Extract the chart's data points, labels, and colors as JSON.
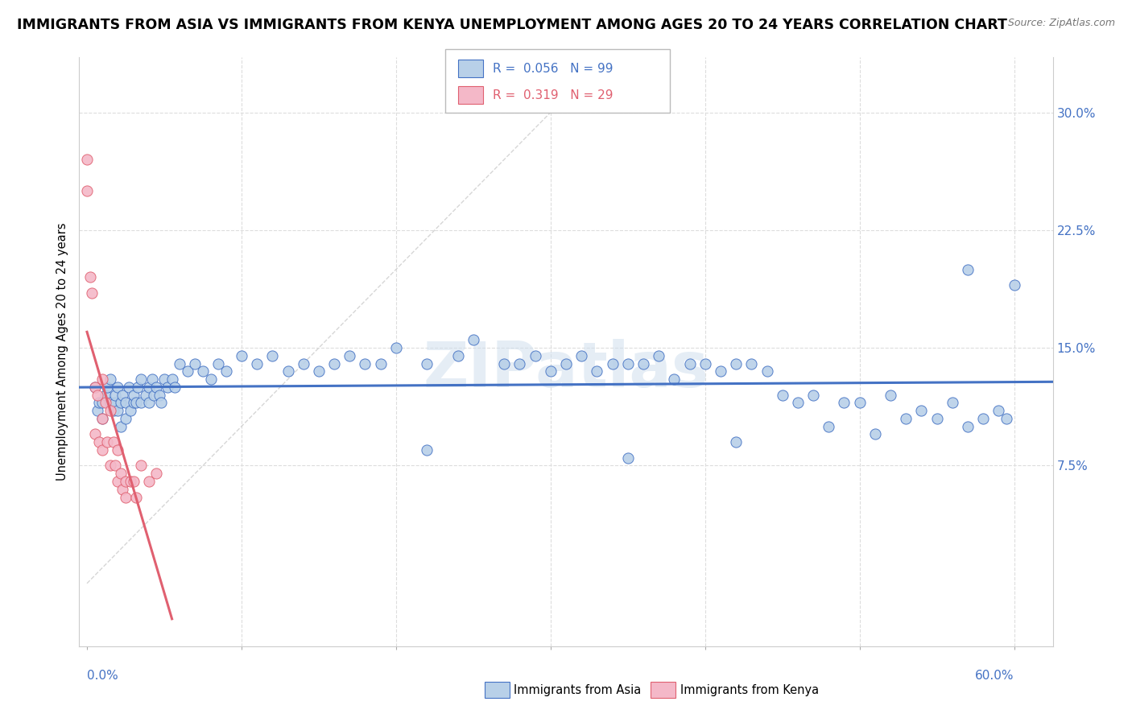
{
  "title": "IMMIGRANTS FROM ASIA VS IMMIGRANTS FROM KENYA UNEMPLOYMENT AMONG AGES 20 TO 24 YEARS CORRELATION CHART",
  "source": "Source: ZipAtlas.com",
  "ylabel": "Unemployment Among Ages 20 to 24 years",
  "xlim": [
    -0.005,
    0.625
  ],
  "ylim": [
    -0.04,
    0.335
  ],
  "R_asia": 0.056,
  "N_asia": 99,
  "R_kenya": 0.319,
  "N_kenya": 29,
  "legend_label_asia": "Immigrants from Asia",
  "legend_label_kenya": "Immigrants from Kenya",
  "color_asia_fill": "#b8d0e8",
  "color_asia_edge": "#4472c4",
  "color_kenya_fill": "#f4b8c8",
  "color_kenya_edge": "#e06070",
  "color_asia_line": "#4472c4",
  "color_kenya_line": "#e06070",
  "color_ref_line": "#cccccc",
  "color_grid": "#dddddd",
  "color_tick_label": "#4472c4",
  "background": "#ffffff",
  "watermark": "ZIPatlas",
  "ytick_vals": [
    0.0,
    0.075,
    0.15,
    0.225,
    0.3
  ],
  "ytick_labels": [
    "",
    "7.5%",
    "15.0%",
    "22.5%",
    "30.0%"
  ],
  "asia_x": [
    0.005,
    0.007,
    0.008,
    0.01,
    0.01,
    0.012,
    0.013,
    0.015,
    0.015,
    0.017,
    0.018,
    0.018,
    0.02,
    0.02,
    0.022,
    0.022,
    0.023,
    0.025,
    0.025,
    0.027,
    0.028,
    0.03,
    0.03,
    0.032,
    0.033,
    0.035,
    0.035,
    0.038,
    0.04,
    0.04,
    0.042,
    0.043,
    0.045,
    0.047,
    0.048,
    0.05,
    0.052,
    0.055,
    0.057,
    0.06,
    0.065,
    0.07,
    0.075,
    0.08,
    0.085,
    0.09,
    0.1,
    0.11,
    0.12,
    0.13,
    0.14,
    0.15,
    0.16,
    0.17,
    0.18,
    0.19,
    0.2,
    0.22,
    0.24,
    0.25,
    0.27,
    0.28,
    0.29,
    0.3,
    0.31,
    0.32,
    0.33,
    0.34,
    0.35,
    0.36,
    0.37,
    0.38,
    0.39,
    0.4,
    0.41,
    0.42,
    0.43,
    0.44,
    0.45,
    0.46,
    0.47,
    0.48,
    0.49,
    0.5,
    0.51,
    0.52,
    0.53,
    0.54,
    0.55,
    0.56,
    0.57,
    0.58,
    0.59,
    0.595,
    0.22,
    0.35,
    0.42,
    0.57,
    0.6
  ],
  "asia_y": [
    0.125,
    0.11,
    0.115,
    0.115,
    0.105,
    0.12,
    0.125,
    0.13,
    0.115,
    0.11,
    0.115,
    0.12,
    0.11,
    0.125,
    0.115,
    0.1,
    0.12,
    0.115,
    0.105,
    0.125,
    0.11,
    0.115,
    0.12,
    0.115,
    0.125,
    0.115,
    0.13,
    0.12,
    0.125,
    0.115,
    0.13,
    0.12,
    0.125,
    0.12,
    0.115,
    0.13,
    0.125,
    0.13,
    0.125,
    0.14,
    0.135,
    0.14,
    0.135,
    0.13,
    0.14,
    0.135,
    0.145,
    0.14,
    0.145,
    0.135,
    0.14,
    0.135,
    0.14,
    0.145,
    0.14,
    0.14,
    0.15,
    0.14,
    0.145,
    0.155,
    0.14,
    0.14,
    0.145,
    0.135,
    0.14,
    0.145,
    0.135,
    0.14,
    0.14,
    0.14,
    0.145,
    0.13,
    0.14,
    0.14,
    0.135,
    0.14,
    0.14,
    0.135,
    0.12,
    0.115,
    0.12,
    0.1,
    0.115,
    0.115,
    0.095,
    0.12,
    0.105,
    0.11,
    0.105,
    0.115,
    0.1,
    0.105,
    0.11,
    0.105,
    0.085,
    0.08,
    0.09,
    0.2,
    0.19
  ],
  "kenya_x": [
    0.0,
    0.0,
    0.002,
    0.003,
    0.005,
    0.005,
    0.007,
    0.008,
    0.01,
    0.01,
    0.01,
    0.012,
    0.013,
    0.015,
    0.015,
    0.017,
    0.018,
    0.02,
    0.02,
    0.022,
    0.023,
    0.025,
    0.025,
    0.028,
    0.03,
    0.032,
    0.035,
    0.04,
    0.045
  ],
  "kenya_y": [
    0.27,
    0.25,
    0.195,
    0.185,
    0.125,
    0.095,
    0.12,
    0.09,
    0.13,
    0.105,
    0.085,
    0.115,
    0.09,
    0.11,
    0.075,
    0.09,
    0.075,
    0.085,
    0.065,
    0.07,
    0.06,
    0.065,
    0.055,
    0.065,
    0.065,
    0.055,
    0.075,
    0.065,
    0.07
  ]
}
